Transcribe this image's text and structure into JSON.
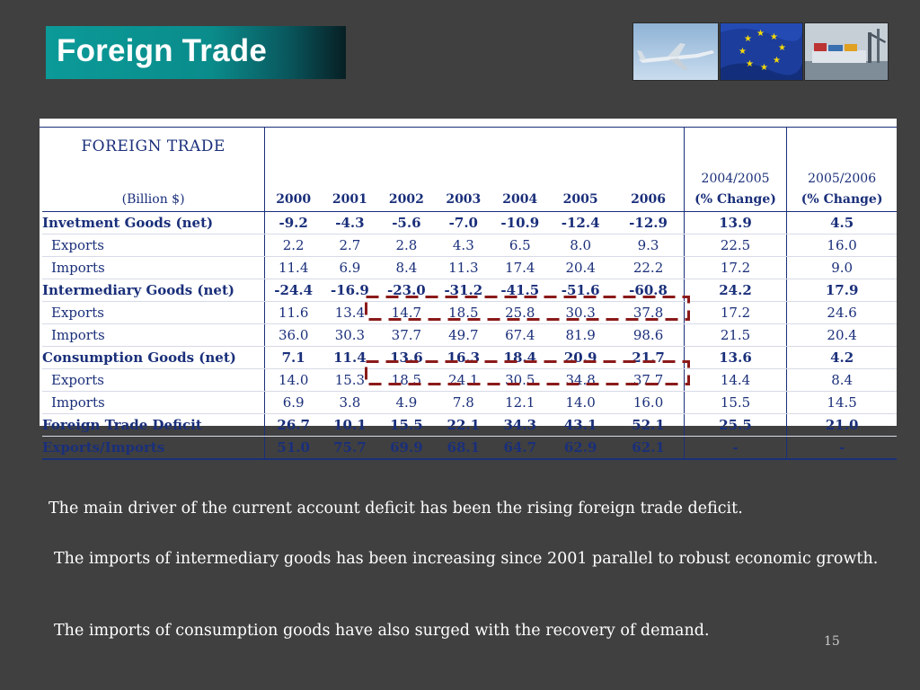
{
  "slide": {
    "title": "Foreign Trade",
    "page_number": "15",
    "images": [
      "airplane-photo",
      "eu-flag-photo",
      "cargo-ship-photo"
    ]
  },
  "table": {
    "title": "FOREIGN TRADE",
    "unit": "(Billion $)",
    "years": [
      "2000",
      "2001",
      "2002",
      "2003",
      "2004",
      "2005",
      "2006"
    ],
    "change_headers": [
      {
        "period": "2004/2005",
        "label": "(% Change)"
      },
      {
        "period": "2005/2006",
        "label": "(% Change)"
      }
    ],
    "rows": [
      {
        "label": "Invetment Goods (net)",
        "bold": true,
        "values": [
          "-9.2",
          "-4.3",
          "-5.6",
          "-7.0",
          "-10.9",
          "-12.4",
          "-12.9"
        ],
        "changes": [
          "13.9",
          "4.5"
        ]
      },
      {
        "label": "Exports",
        "bold": false,
        "values": [
          "2.2",
          "2.7",
          "2.8",
          "4.3",
          "6.5",
          "8.0",
          "9.3"
        ],
        "changes": [
          "22.5",
          "16.0"
        ]
      },
      {
        "label": "Imports",
        "bold": false,
        "values": [
          "11.4",
          "6.9",
          "8.4",
          "11.3",
          "17.4",
          "20.4",
          "22.2"
        ],
        "changes": [
          "17.2",
          "9.0"
        ]
      },
      {
        "label": "Intermediary Goods (net)",
        "bold": true,
        "values": [
          "-24.4",
          "-16.9",
          "-23.0",
          "-31.2",
          "-41.5",
          "-51.6",
          "-60.8"
        ],
        "changes": [
          "24.2",
          "17.9"
        ]
      },
      {
        "label": "Exports",
        "bold": false,
        "values": [
          "11.6",
          "13.4",
          "14.7",
          "18.5",
          "25.8",
          "30.3",
          "37.8"
        ],
        "changes": [
          "17.2",
          "24.6"
        ]
      },
      {
        "label": "Imports",
        "bold": false,
        "values": [
          "36.0",
          "30.3",
          "37.7",
          "49.7",
          "67.4",
          "81.9",
          "98.6"
        ],
        "changes": [
          "21.5",
          "20.4"
        ]
      },
      {
        "label": "Consumption Goods (net)",
        "bold": true,
        "values": [
          "7.1",
          "11.4",
          "13.6",
          "16.3",
          "18.4",
          "20.9",
          "21.7"
        ],
        "changes": [
          "13.6",
          "4.2"
        ]
      },
      {
        "label": "Exports",
        "bold": false,
        "values": [
          "14.0",
          "15.3",
          "18.5",
          "24.1",
          "30.5",
          "34.8",
          "37.7"
        ],
        "changes": [
          "14.4",
          "8.4"
        ]
      },
      {
        "label": "Imports",
        "bold": false,
        "values": [
          "6.9",
          "3.8",
          "4.9",
          "7.8",
          "12.1",
          "14.0",
          "16.0"
        ],
        "changes": [
          "15.5",
          "14.5"
        ]
      },
      {
        "label": "Foreign Trade Deficit",
        "bold": true,
        "values": [
          "26.7",
          "10.1",
          "15.5",
          "22.1",
          "34.3",
          "43.1",
          "52.1"
        ],
        "changes": [
          "25.5",
          "21.0"
        ]
      },
      {
        "label": "Exports/Imports",
        "bold": true,
        "values": [
          "51.0",
          "75.7",
          "69.9",
          "68.1",
          "64.7",
          "62.9",
          "62.1"
        ],
        "changes": [
          "-",
          "-"
        ]
      }
    ],
    "highlight_color": "#8b1a1a",
    "text_color": "#1a2f7a"
  },
  "paragraphs": {
    "p1": "The main driver of the current account deficit has been the rising foreign trade deficit.",
    "p2": "The imports of intermediary goods has been increasing since 2001 parallel to robust economic growth.",
    "p3": "The imports of consumption goods have also surged with the recovery of demand."
  },
  "colors": {
    "background": "#404040",
    "title_bar": "#0b9a98",
    "text_on_dark": "#ffffff"
  }
}
